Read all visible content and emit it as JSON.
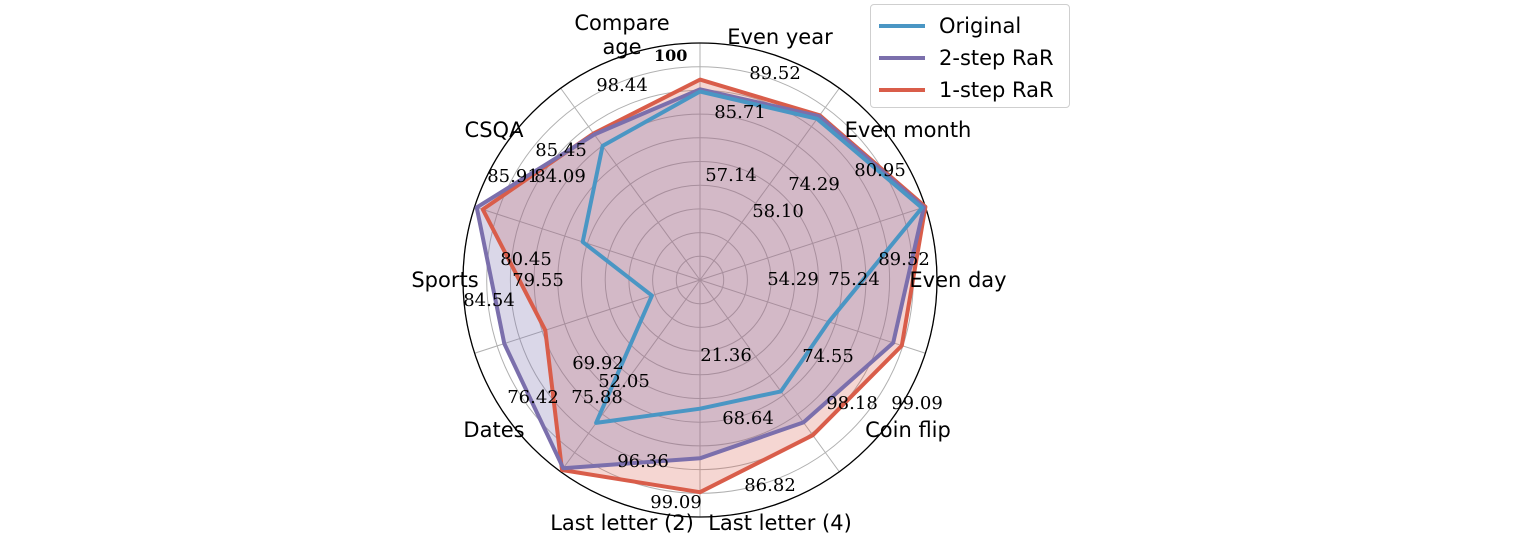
{
  "chart_data": {
    "type": "radar",
    "categories": [
      "Compare age",
      "Even year",
      "Even month",
      "Even day",
      "Coin flip",
      "Last letter (4)",
      "Last letter (2)",
      "Dates",
      "Sports",
      "CSQA"
    ],
    "category_lines": [
      [
        "Compare",
        "age"
      ],
      [
        "Even year"
      ],
      [
        "Even month"
      ],
      [
        "Even day"
      ],
      [
        "Coin flip"
      ],
      [
        "Last letter (4)"
      ],
      [
        "Last letter (2)"
      ],
      [
        "Dates"
      ],
      [
        "Sports"
      ],
      [
        "CSQA"
      ]
    ],
    "rlim": [
      0,
      100
    ],
    "r_tick_label": "100",
    "grid": true,
    "legend_position": "top-right",
    "series": [
      {
        "name": "Original",
        "color": "#4a96c4",
        "values": [
          98.44,
          57.14,
          58.1,
          54.29,
          74.55,
          21.36,
          52.05,
          69.92,
          79.55,
          84.09
        ],
        "value_labels": [
          "98.44",
          "57.14",
          "58.10",
          "54.29",
          "74.55",
          "21.36",
          "52.05",
          "69.92",
          "79.55",
          "84.09"
        ]
      },
      {
        "name": "2-step RaR",
        "color": "#7b6fac",
        "values": [
          99.3,
          85.71,
          74.29,
          75.24,
          98.18,
          86.82,
          99.09,
          75.88,
          80.45,
          85.45
        ],
        "value_labels": [
          "",
          "85.71",
          "74.29",
          "75.24",
          "98.18",
          "86.82",
          "99.09",
          "75.88",
          "80.45",
          "85.45"
        ]
      },
      {
        "name": "1-step RaR",
        "color": "#d95d4a",
        "values": [
          100,
          89.52,
          80.95,
          89.52,
          99.09,
          68.64,
          96.36,
          76.42,
          84.54,
          85.91
        ],
        "value_labels": [
          "100",
          "89.52",
          "80.95",
          "89.52",
          "99.09",
          "68.64",
          "96.36",
          "76.42",
          "84.54",
          "85.91"
        ]
      }
    ]
  }
}
